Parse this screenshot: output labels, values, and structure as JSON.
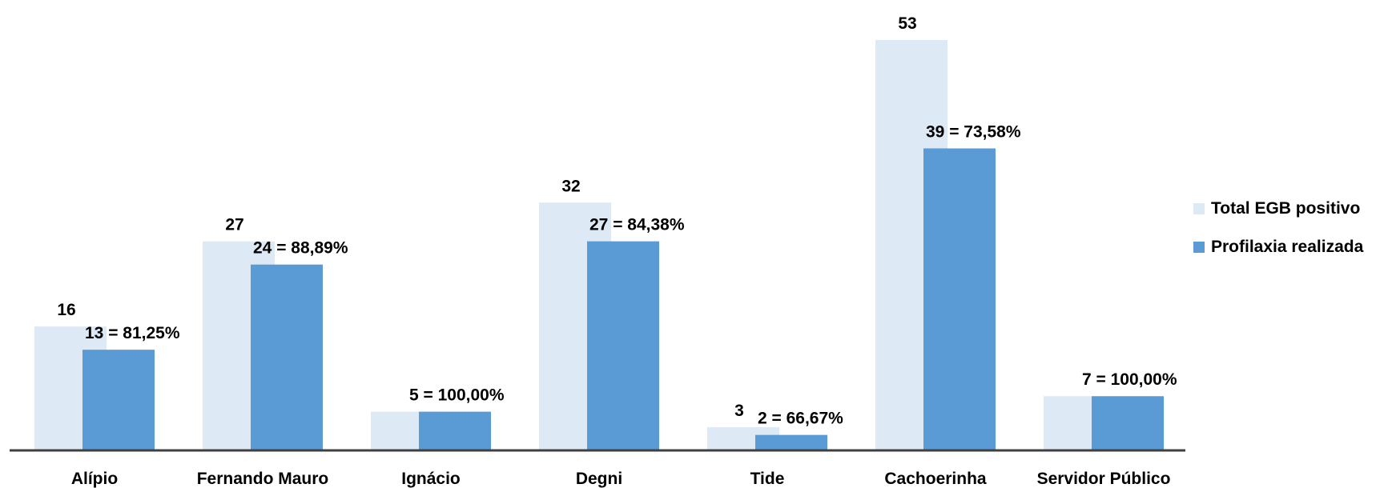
{
  "chart_data": {
    "type": "bar",
    "categories": [
      "Alípio",
      "Fernando Mauro",
      "Ignácio",
      "Degni",
      "Tide",
      "Cachoerinha",
      "Servidor Público"
    ],
    "series": [
      {
        "name": "Total EGB positivo",
        "values": [
          16,
          27,
          5,
          32,
          3,
          53,
          7
        ],
        "color": "#dde9f5",
        "labels": [
          "16",
          "27",
          "",
          "32",
          "3",
          "53",
          ""
        ]
      },
      {
        "name": "Profilaxia realizada",
        "values": [
          13,
          24,
          5,
          27,
          2,
          39,
          7
        ],
        "color": "#5b9bd5",
        "labels": [
          "13 = 81,25%",
          "24 = 88,89%",
          "5 = 100,00%",
          "27 = 84,38%",
          "2 = 66,67%",
          "39 = 73,58%",
          "7 = 100,00%"
        ]
      }
    ],
    "ylim": [
      0,
      53
    ],
    "grid": false,
    "legend_position": "right"
  }
}
